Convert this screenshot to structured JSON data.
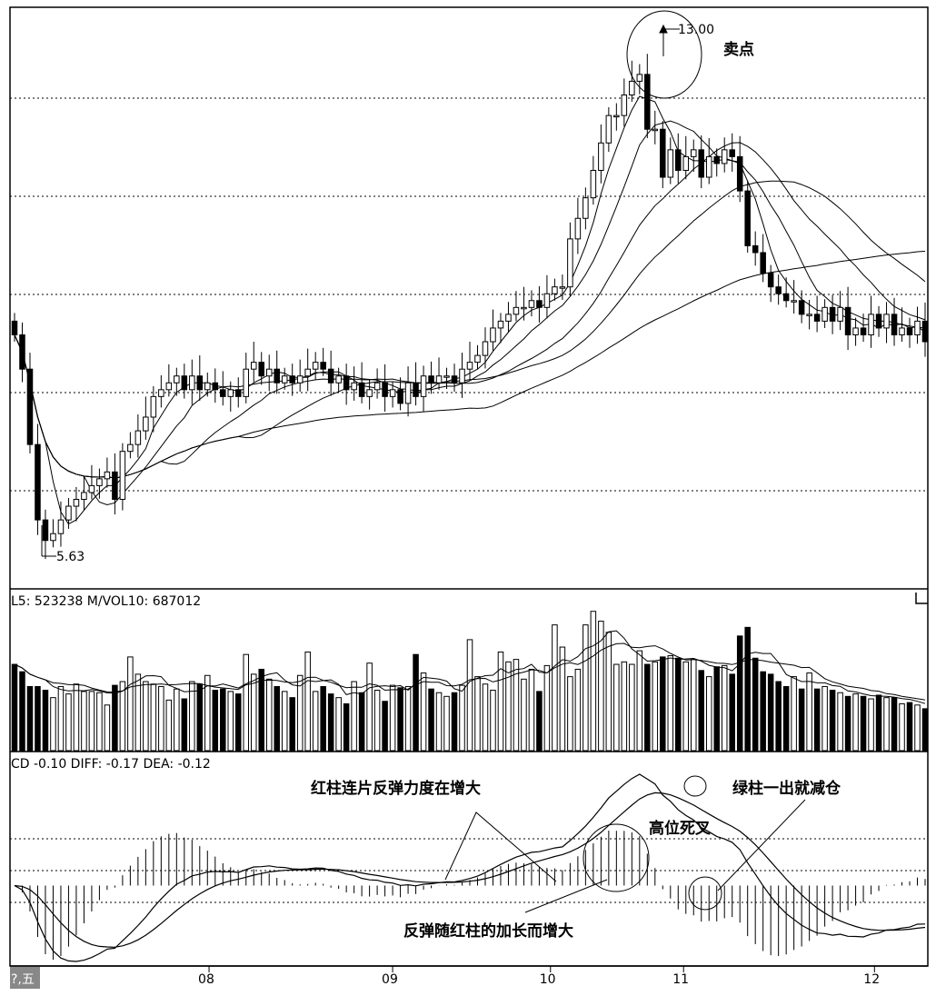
{
  "volume_header": "L5: 523238 M/VOL10: 687012",
  "macd_header": "CD  -0.10 DIFF: -0.17 DEA: -0.12",
  "x_axis_labels": [
    "08",
    "09",
    "10",
    "11",
    "12"
  ],
  "period_label": "?,五",
  "annotations": {
    "price_high": "13.00",
    "price_low": "5.63",
    "sell_point": "卖点",
    "red_bars_rebound": "红柱连片反弹力度在增大",
    "green_bar_reduce": "绿柱一出就减仓",
    "high_death_cross": "高位死叉",
    "rebound_grows": "反弹随红柱的加长而增大"
  },
  "chart_data": [
    {
      "type": "candlestick",
      "low_value": 5.63,
      "high_value": 13.0,
      "x_ticks": [
        "08",
        "09",
        "10",
        "11",
        "12"
      ],
      "close": [
        8.9,
        8.4,
        7.3,
        6.2,
        5.9,
        6.0,
        6.2,
        6.4,
        6.5,
        6.6,
        6.7,
        6.8,
        6.9,
        6.5,
        7.2,
        7.3,
        7.5,
        7.7,
        8.0,
        8.1,
        8.2,
        8.3,
        8.1,
        8.3,
        8.1,
        8.2,
        8.1,
        8.0,
        8.1,
        8.0,
        8.4,
        8.5,
        8.3,
        8.4,
        8.2,
        8.3,
        8.2,
        8.3,
        8.4,
        8.5,
        8.4,
        8.2,
        8.3,
        8.1,
        8.2,
        8.0,
        8.1,
        8.2,
        8.0,
        8.1,
        7.9,
        8.2,
        8.0,
        8.3,
        8.2,
        8.3,
        8.3,
        8.2,
        8.4,
        8.5,
        8.6,
        8.8,
        9.0,
        9.1,
        9.2,
        9.3,
        9.3,
        9.4,
        9.3,
        9.5,
        9.6,
        9.6,
        10.3,
        10.6,
        10.9,
        11.3,
        11.7,
        12.1,
        12.1,
        12.4,
        12.6,
        12.7,
        11.9,
        11.9,
        11.2,
        11.6,
        11.3,
        11.5,
        11.6,
        11.2,
        11.5,
        11.4,
        11.6,
        11.5,
        11.0,
        10.2,
        10.1,
        9.8,
        9.6,
        9.5,
        9.4,
        9.4,
        9.2,
        9.2,
        9.1,
        9.3,
        9.1,
        9.3,
        8.9,
        9.0,
        8.9,
        9.2,
        9.0,
        9.2,
        8.9,
        9.0,
        8.9,
        9.1,
        8.8
      ],
      "volume": [
        700000,
        640000,
        520000,
        520000,
        490000,
        430000,
        520000,
        460000,
        540000,
        480000,
        480000,
        470000,
        370000,
        530000,
        560000,
        760000,
        620000,
        560000,
        540000,
        520000,
        410000,
        500000,
        420000,
        560000,
        540000,
        610000,
        490000,
        500000,
        480000,
        460000,
        780000,
        620000,
        660000,
        580000,
        520000,
        480000,
        430000,
        610000,
        800000,
        480000,
        520000,
        460000,
        430000,
        380000,
        560000,
        470000,
        710000,
        490000,
        400000,
        530000,
        510000,
        520000,
        780000,
        630000,
        500000,
        470000,
        440000,
        470000,
        530000,
        900000,
        600000,
        540000,
        490000,
        800000,
        720000,
        740000,
        580000,
        660000,
        480000,
        690000,
        1020000,
        840000,
        600000,
        660000,
        1020000,
        1130000,
        1050000,
        960000,
        700000,
        720000,
        700000,
        810000,
        700000,
        720000,
        760000,
        770000,
        750000,
        720000,
        740000,
        650000,
        600000,
        680000,
        690000,
        620000,
        930000,
        1000000,
        750000,
        640000,
        620000,
        560000,
        520000,
        600000,
        500000,
        630000,
        500000,
        520000,
        490000,
        470000,
        440000,
        460000,
        440000,
        420000,
        450000,
        430000,
        430000,
        380000,
        390000,
        370000,
        340000
      ]
    },
    {
      "type": "histogram",
      "name": "MACD",
      "values": {
        "DIFF": -0.17,
        "DEA": -0.12,
        "MACD": -0.1
      }
    }
  ]
}
